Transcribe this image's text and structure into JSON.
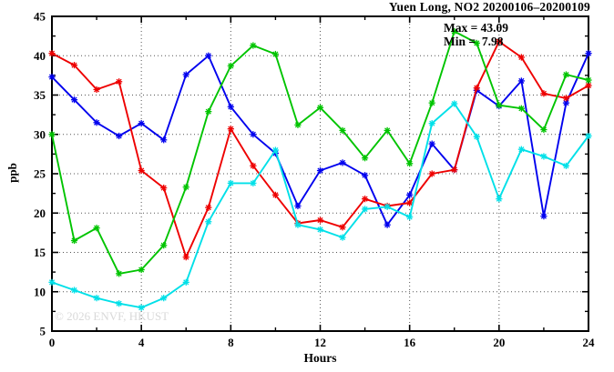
{
  "title": "Yuen Long, NO2 20200106–20200109",
  "annotation": {
    "max_label": "Max = 43.09",
    "min_label": "Min =  7.98"
  },
  "watermark": "© 2026 ENVF, HKUST",
  "chart_data": {
    "type": "line",
    "title": "Yuen Long, NO2 20200106–20200109",
    "xlabel": "Hours",
    "ylabel": "ppb",
    "xlim": [
      0,
      24
    ],
    "ylim": [
      5,
      45
    ],
    "x_major_ticks": [
      0,
      4,
      8,
      12,
      16,
      20,
      24
    ],
    "x_minor_step": 2,
    "y_major_ticks": [
      5,
      10,
      15,
      20,
      25,
      30,
      35,
      40,
      45
    ],
    "y_minor_step": 2.5,
    "grid": true,
    "legend_position": "none",
    "marker": "asterisk",
    "stats": {
      "max": 43.09,
      "min": 7.98
    },
    "x": [
      0,
      1,
      2,
      3,
      4,
      5,
      6,
      7,
      8,
      9,
      10,
      11,
      12,
      13,
      14,
      15,
      16,
      17,
      18,
      19,
      20,
      21,
      22,
      23,
      24
    ],
    "series": [
      {
        "name": "blue",
        "color": "#0000ee",
        "values": [
          37.3,
          34.4,
          31.5,
          29.8,
          31.4,
          29.3,
          37.6,
          40.0,
          33.5,
          30.0,
          27.6,
          20.9,
          25.4,
          26.4,
          24.8,
          18.5,
          22.3,
          28.8,
          25.5,
          35.6,
          33.6,
          36.8,
          19.6,
          34.0,
          40.3
        ]
      },
      {
        "name": "red",
        "color": "#ee0000",
        "values": [
          40.3,
          38.8,
          35.7,
          36.7,
          25.4,
          23.2,
          14.4,
          20.7,
          30.7,
          26.0,
          22.3,
          18.7,
          19.1,
          18.2,
          21.8,
          20.9,
          21.3,
          25.0,
          25.5,
          35.9,
          41.8,
          39.8,
          35.2,
          34.6,
          36.2
        ]
      },
      {
        "name": "green",
        "color": "#00c400",
        "values": [
          30.0,
          16.5,
          18.1,
          12.3,
          12.8,
          15.9,
          23.3,
          32.9,
          38.7,
          41.3,
          40.2,
          31.2,
          33.4,
          30.5,
          27.0,
          30.5,
          26.3,
          34.0,
          43.09,
          41.6,
          33.7,
          33.3,
          30.6,
          37.6,
          36.9
        ]
      },
      {
        "name": "cyan",
        "color": "#00e0e8",
        "values": [
          11.2,
          10.2,
          9.2,
          8.5,
          7.98,
          9.2,
          11.2,
          18.9,
          23.8,
          23.8,
          28.0,
          18.5,
          17.9,
          16.9,
          20.5,
          20.8,
          19.5,
          31.4,
          33.9,
          29.7,
          21.8,
          28.1,
          27.2,
          26.0,
          29.8
        ]
      }
    ]
  }
}
